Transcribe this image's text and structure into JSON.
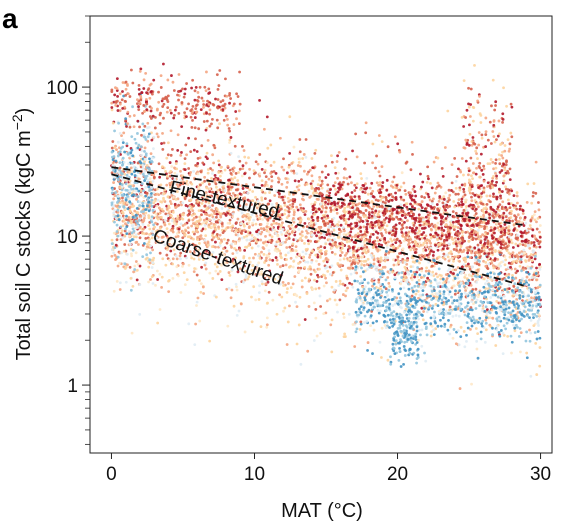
{
  "panel_label": "a",
  "chart_data": {
    "type": "scatter",
    "title": "",
    "xlabel": "MAT (°C)",
    "ylabel_main": "Total soil C stocks (kgC m",
    "ylabel_sup": "−2",
    "ylabel_close": ")",
    "xlim": [
      -1.5,
      30.8
    ],
    "ylim": [
      0.35,
      300
    ],
    "y_scale": "log",
    "grid": false,
    "legend": "none",
    "x_ticks": [
      {
        "value": 0,
        "label": "0"
      },
      {
        "value": 10,
        "label": "10"
      },
      {
        "value": 20,
        "label": "20"
      },
      {
        "value": 30,
        "label": "30"
      }
    ],
    "y_ticks": [
      {
        "value": 1,
        "label": "1"
      },
      {
        "value": 10,
        "label": "10"
      },
      {
        "value": 100,
        "label": "100"
      }
    ],
    "y_minor_ticks": [
      0.4,
      0.5,
      0.6,
      0.7,
      0.8,
      0.9,
      2,
      3,
      4,
      5,
      6,
      7,
      8,
      9,
      20,
      30,
      40,
      50,
      60,
      70,
      80,
      90,
      200,
      300
    ],
    "lines": [
      {
        "label": "Fine-textured",
        "style": "dashed",
        "x": [
          0,
          29
        ],
        "y": [
          29,
          11.8
        ]
      },
      {
        "label": "Coarse-textured",
        "style": "dashed",
        "x": [
          0,
          29
        ],
        "y": [
          26,
          4.6
        ]
      }
    ],
    "annotations": [
      {
        "text": "Fine-textured",
        "x": 4.0,
        "y": 19.5,
        "angle": 13
      },
      {
        "text": "Coarse-textured",
        "x": 2.8,
        "y": 9.3,
        "angle": 19
      }
    ],
    "point_colors": [
      "#b2182b",
      "#d6604d",
      "#f4a582",
      "#fdd49e",
      "#fee8c8",
      "#e0ecf4",
      "#92c5de",
      "#4393c3"
    ],
    "point_cloud": {
      "description_counts": "approximate density clusters",
      "clusters": [
        {
          "x": [
            0,
            30
          ],
          "y_center_start": 18,
          "y_center_end": 8.5,
          "spread_log": 0.22,
          "n": 2600,
          "palette": [
            0,
            1,
            1,
            2,
            2,
            3
          ]
        },
        {
          "x": [
            0,
            30
          ],
          "y_center_start": 13,
          "y_center_end": 5.0,
          "spread_log": 0.26,
          "n": 1600,
          "palette": [
            2,
            3,
            3,
            4,
            5
          ]
        },
        {
          "x": [
            0,
            3
          ],
          "y_center_start": 22,
          "y_center_end": 22,
          "spread_log": 0.22,
          "n": 300,
          "palette": [
            6,
            6,
            5,
            7
          ]
        },
        {
          "x": [
            0,
            9
          ],
          "y_center_start": 85,
          "y_center_end": 75,
          "spread_log": 0.09,
          "n": 260,
          "palette": [
            0,
            1,
            1,
            2
          ]
        },
        {
          "x": [
            24.5,
            28
          ],
          "y_center_start": 30,
          "y_center_end": 30,
          "spread_log": 0.3,
          "n": 260,
          "palette": [
            0,
            1,
            2,
            3
          ]
        },
        {
          "x": [
            17,
            30
          ],
          "y_center_start": 3.8,
          "y_center_end": 3.4,
          "spread_log": 0.12,
          "n": 700,
          "palette": [
            6,
            7,
            7,
            6,
            5
          ]
        },
        {
          "x": [
            19.5,
            21.5
          ],
          "y_center_start": 2.2,
          "y_center_end": 2.2,
          "spread_log": 0.1,
          "n": 120,
          "palette": [
            7,
            6
          ]
        },
        {
          "x": [
            14,
            29
          ],
          "y_center_start": 16,
          "y_center_end": 11,
          "spread_log": 0.12,
          "n": 500,
          "palette": [
            0,
            0,
            1
          ]
        }
      ]
    }
  }
}
